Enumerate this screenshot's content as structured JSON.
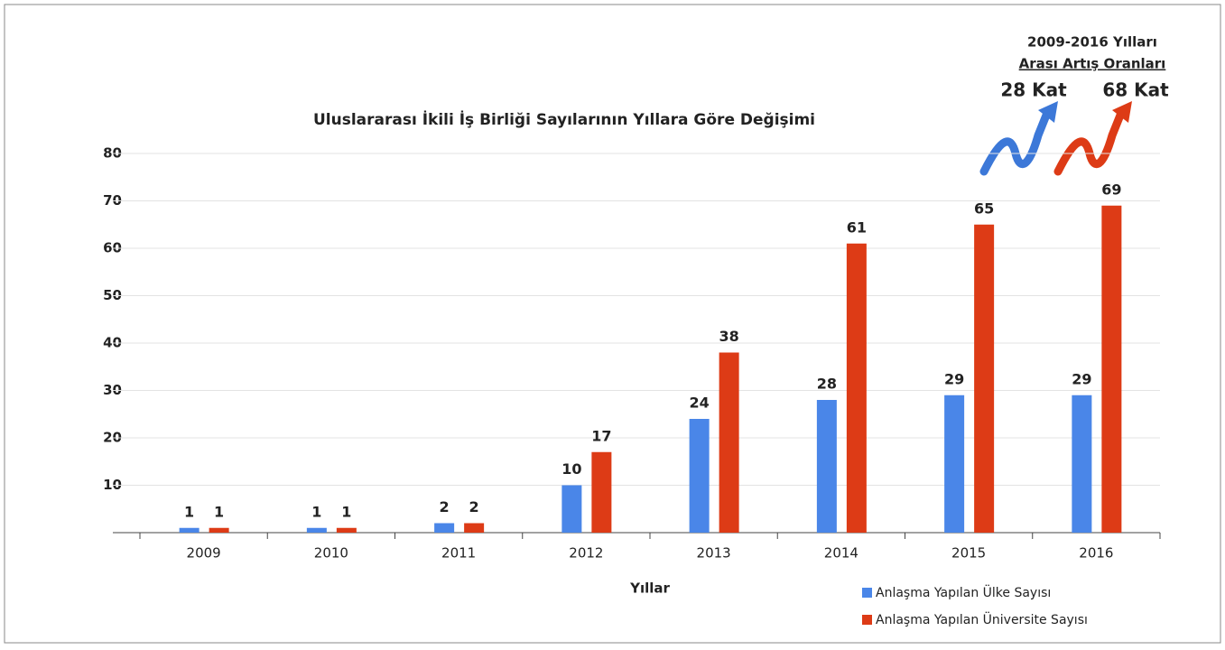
{
  "chart_data": {
    "type": "bar",
    "title": "Uluslararası İkili İş Birliği Sayılarının Yıllara Göre Değişimi",
    "x_label": "Yıllar",
    "categories": [
      "2009",
      "2010",
      "2011",
      "2012",
      "2013",
      "2014",
      "2015",
      "2016"
    ],
    "series": [
      {
        "name": "Anlaşma Yapılan Ülke Sayısı",
        "color": "#4a86e8",
        "values": [
          1,
          1,
          2,
          10,
          24,
          28,
          29,
          29
        ]
      },
      {
        "name": "Anlaşma Yapılan Üniversite Sayısı",
        "color": "#dd3b16",
        "values": [
          1,
          1,
          2,
          17,
          38,
          61,
          65,
          69
        ]
      }
    ],
    "ylim": [
      0,
      80
    ],
    "yticks": [
      10,
      20,
      30,
      40,
      50,
      60,
      70,
      80
    ],
    "grid": true,
    "legend": "bottom-right",
    "annotation": {
      "title_line1": "2009-2016 Yılları",
      "title_line2": "Arası Artış Oranları",
      "rate1": "28 Kat",
      "rate2": "68 Kat"
    }
  }
}
